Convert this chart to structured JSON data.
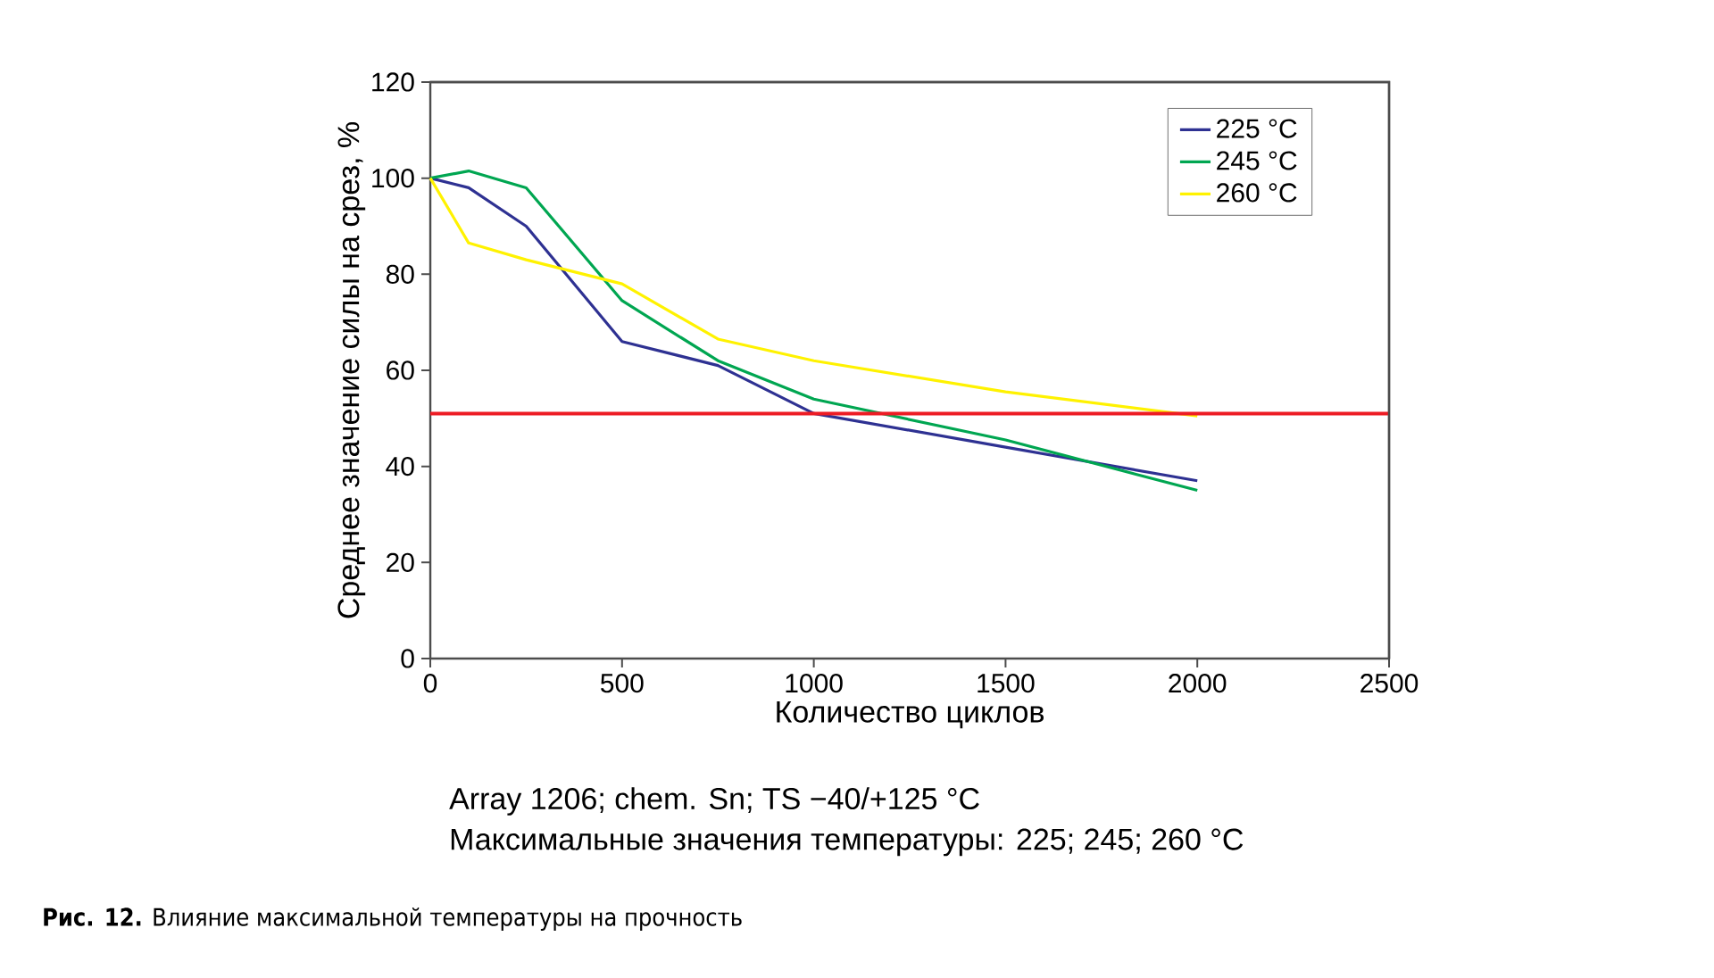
{
  "chart_data": {
    "type": "line",
    "title": "**Рис. 12.** Влияние максимальной температуры на прочность",
    "xlabel": "Количество циклов",
    "ylabel": "Среднее значение силы на срез, %",
    "annotations": [
      "Array 1206; chem. Sn; TS −40/+125 °C",
      "Максимальные значения температуры: 225; 245; 260 °C"
    ],
    "x": [
      0,
      100,
      250,
      500,
      750,
      1000,
      1500,
      2000
    ],
    "series": [
      {
        "name": "225 °C",
        "color": "#2e3192",
        "values": [
          100,
          98,
          90,
          66,
          61,
          51,
          44,
          37
        ]
      },
      {
        "name": "245 °C",
        "color": "#00a651",
        "values": [
          100,
          101.5,
          98,
          74.5,
          62,
          54,
          45.5,
          35
        ]
      },
      {
        "name": "260 °C",
        "color": "#fff200",
        "values": [
          100,
          86.5,
          83,
          78,
          66.5,
          62,
          55.5,
          50.5
        ]
      }
    ],
    "ref_lines": [
      {
        "axis": "y",
        "value": 51,
        "color": "#ed1c24"
      }
    ],
    "xlim": [
      0,
      2500
    ],
    "xticks": [
      0,
      500,
      1000,
      1500,
      2000,
      2500
    ],
    "ylim": [
      0,
      120
    ],
    "yticks": [
      0,
      20,
      40,
      60,
      80,
      100,
      120
    ],
    "grid": false,
    "legend": "top right",
    "marker": "none",
    "line_style": "solid"
  }
}
